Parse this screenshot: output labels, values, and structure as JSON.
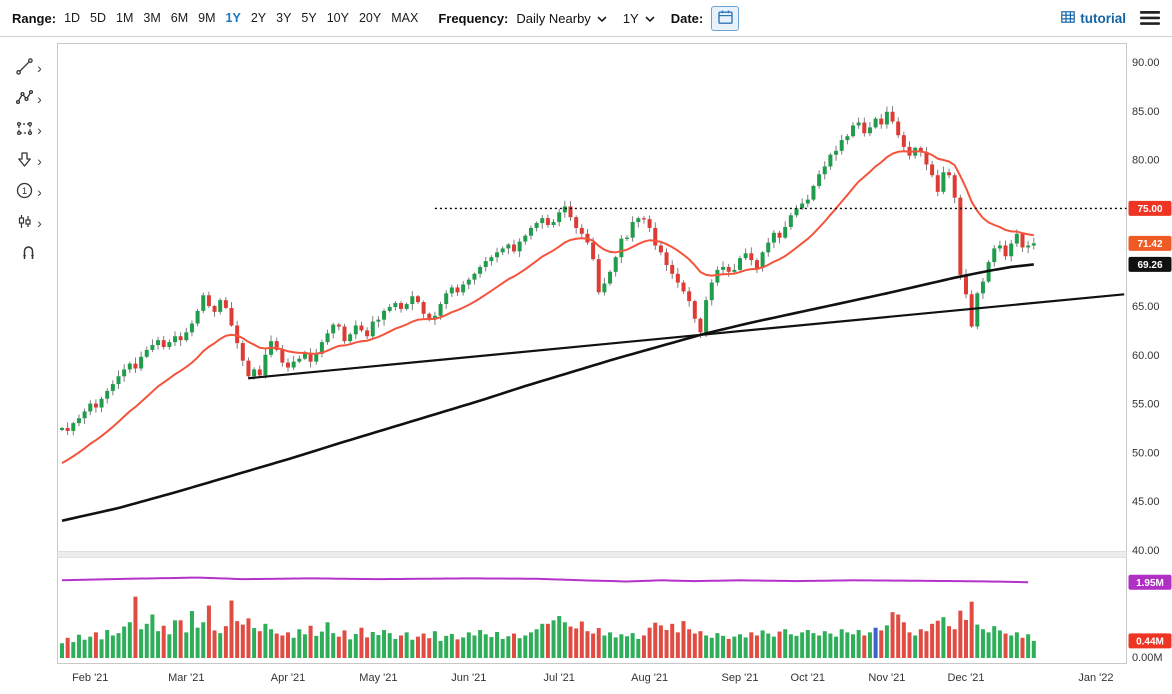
{
  "toolbar": {
    "range_label": "Range:",
    "range_options": [
      "1D",
      "5D",
      "1M",
      "3M",
      "6M",
      "9M",
      "1Y",
      "2Y",
      "3Y",
      "5Y",
      "10Y",
      "20Y",
      "MAX"
    ],
    "range_selected": "1Y",
    "frequency_label": "Frequency:",
    "frequency_value": "Daily Nearby",
    "period_value": "1Y",
    "date_label": "Date:",
    "brand": "tutorial"
  },
  "sidebar": {
    "tools": [
      "trendline-tool",
      "polyline-tool",
      "shape-tool",
      "arrow-tool",
      "count-tool",
      "pattern-tool",
      "magnet-tool"
    ]
  },
  "colors": {
    "up": "#1f9d4d",
    "down": "#dd3b34",
    "volume_up": "#2fae5a",
    "volume_down": "#e04b42",
    "volume_highlight": "#3a62c9",
    "red_ma": "#f4543c",
    "black_ma": "#111111",
    "oi_line": "#b434cb",
    "wick": "#6f6f6f"
  },
  "badges": {
    "price": [
      {
        "label": "75.00",
        "value": 75.0,
        "color": "#ee3524"
      },
      {
        "label": "71.42",
        "value": 71.42,
        "color": "#ef5b25"
      },
      {
        "label": "69.26",
        "value": 69.26,
        "color": "#101010"
      }
    ],
    "volume": [
      {
        "label": "1.95M",
        "value_m": 1.95,
        "color": "#b02fc5"
      },
      {
        "label": "0.44M",
        "value_m": 0.44,
        "color": "#ee3524"
      }
    ]
  },
  "chart_data": {
    "type": "candlestick",
    "price_axis": {
      "min": 40,
      "max": 91.5,
      "ticks": [
        90,
        85,
        80,
        65,
        60,
        55,
        50,
        45,
        40
      ]
    },
    "volume_axis": {
      "max_m": 2.6,
      "tick_label": "0.00M"
    },
    "x_axis": {
      "total_slots": 188,
      "months": [
        {
          "label": "Feb '21",
          "i": 5
        },
        {
          "label": "Mar '21",
          "i": 22
        },
        {
          "label": "Apr '21",
          "i": 40
        },
        {
          "label": "May '21",
          "i": 56
        },
        {
          "label": "Jun '21",
          "i": 72
        },
        {
          "label": "Jul '21",
          "i": 88
        },
        {
          "label": "Aug '21",
          "i": 104
        },
        {
          "label": "Sep '21",
          "i": 120
        },
        {
          "label": "Oct '21",
          "i": 132
        },
        {
          "label": "Nov '21",
          "i": 146
        },
        {
          "label": "Dec '21",
          "i": 160
        },
        {
          "label": "Jan '22",
          "i": 183
        }
      ]
    },
    "series": {
      "first_open": 52.3,
      "closes": [
        52.5,
        52.2,
        53.0,
        53.5,
        54.2,
        55.0,
        54.6,
        55.5,
        56.3,
        57.0,
        57.8,
        58.5,
        59.1,
        58.6,
        59.8,
        60.5,
        61.0,
        61.5,
        60.8,
        61.3,
        61.9,
        61.5,
        62.3,
        63.2,
        64.5,
        66.1,
        65.0,
        64.4,
        65.6,
        64.8,
        63.0,
        61.2,
        59.4,
        57.8,
        58.5,
        57.9,
        60.0,
        61.4,
        60.5,
        59.2,
        58.7,
        59.3,
        59.6,
        60.2,
        59.3,
        60.1,
        61.3,
        62.2,
        63.1,
        62.9,
        61.4,
        62.1,
        63.0,
        62.5,
        61.9,
        63.4,
        63.6,
        64.5,
        64.9,
        65.3,
        64.7,
        65.2,
        66.0,
        65.4,
        64.2,
        63.6,
        64.0,
        65.2,
        66.3,
        66.9,
        66.4,
        67.2,
        67.7,
        68.3,
        69.0,
        69.6,
        70.0,
        70.5,
        70.9,
        71.3,
        70.6,
        71.6,
        72.2,
        73.0,
        73.5,
        74.0,
        73.3,
        73.6,
        74.6,
        75.2,
        74.1,
        73.0,
        72.4,
        71.5,
        69.8,
        66.4,
        67.3,
        68.5,
        70.0,
        71.9,
        72.0,
        73.6,
        74.0,
        73.9,
        73.0,
        71.2,
        70.5,
        69.2,
        68.3,
        67.4,
        66.5,
        65.5,
        63.7,
        62.3,
        65.6,
        67.4,
        68.7,
        69.0,
        68.5,
        68.7,
        69.9,
        70.4,
        69.7,
        68.9,
        70.5,
        71.5,
        72.5,
        72.0,
        73.1,
        74.3,
        75.0,
        75.5,
        75.9,
        77.3,
        78.5,
        79.3,
        80.5,
        80.9,
        82.0,
        82.4,
        83.5,
        83.8,
        82.7,
        83.3,
        84.2,
        83.6,
        84.9,
        83.9,
        82.5,
        81.3,
        80.4,
        81.2,
        80.8,
        79.5,
        78.4,
        76.7,
        78.7,
        78.4,
        76.1,
        68.2,
        66.2,
        62.9,
        66.3,
        67.5,
        69.5,
        70.9,
        71.2,
        70.1,
        71.4,
        72.4,
        71.0,
        71.2,
        71.42
      ],
      "volumes_m": [
        0.38,
        0.52,
        0.41,
        0.6,
        0.47,
        0.55,
        0.66,
        0.48,
        0.72,
        0.58,
        0.64,
        0.81,
        0.92,
        1.58,
        0.74,
        0.88,
        1.12,
        0.69,
        0.83,
        0.61,
        0.97,
        0.97,
        0.66,
        1.21,
        0.78,
        0.92,
        1.35,
        0.71,
        0.64,
        0.82,
        1.48,
        0.95,
        0.86,
        1.02,
        0.77,
        0.69,
        0.88,
        0.74,
        0.63,
        0.58,
        0.66,
        0.52,
        0.74,
        0.61,
        0.83,
        0.57,
        0.68,
        0.92,
        0.64,
        0.55,
        0.71,
        0.48,
        0.62,
        0.78,
        0.53,
        0.67,
        0.59,
        0.72,
        0.64,
        0.49,
        0.58,
        0.66,
        0.47,
        0.55,
        0.63,
        0.51,
        0.69,
        0.44,
        0.57,
        0.62,
        0.48,
        0.53,
        0.66,
        0.58,
        0.72,
        0.61,
        0.54,
        0.67,
        0.49,
        0.56,
        0.63,
        0.51,
        0.58,
        0.66,
        0.74,
        0.88,
        0.88,
        0.97,
        1.08,
        0.92,
        0.81,
        0.76,
        0.94,
        0.69,
        0.63,
        0.77,
        0.58,
        0.66,
        0.53,
        0.61,
        0.56,
        0.64,
        0.49,
        0.58,
        0.78,
        0.91,
        0.84,
        0.72,
        0.88,
        0.66,
        0.95,
        0.74,
        0.63,
        0.69,
        0.58,
        0.52,
        0.64,
        0.57,
        0.49,
        0.55,
        0.61,
        0.53,
        0.66,
        0.58,
        0.71,
        0.63,
        0.55,
        0.68,
        0.74,
        0.61,
        0.57,
        0.66,
        0.72,
        0.64,
        0.58,
        0.69,
        0.63,
        0.55,
        0.74,
        0.66,
        0.61,
        0.72,
        0.58,
        0.66,
        0.78,
        0.71,
        0.84,
        1.18,
        1.12,
        0.92,
        0.66,
        0.58,
        0.74,
        0.69,
        0.88,
        0.96,
        1.05,
        0.82,
        0.74,
        1.22,
        0.98,
        1.45,
        0.86,
        0.74,
        0.66,
        0.82,
        0.71,
        0.63,
        0.58,
        0.66,
        0.52,
        0.61,
        0.44
      ],
      "volume_highlight_index": 144
    },
    "overlays": {
      "resistance_line": {
        "value": 75.0,
        "start_index": 66,
        "style": "dotted"
      },
      "trendline": {
        "from": {
          "index": 33,
          "price": 57.6
        },
        "to": {
          "index": 188,
          "price": 66.2
        }
      },
      "red_ma": {
        "kind": "ema",
        "alpha": 0.1,
        "seed": 48.5
      },
      "black_ma_points": [
        [
          0,
          43.0
        ],
        [
          10,
          44.3
        ],
        [
          20,
          45.9
        ],
        [
          30,
          47.6
        ],
        [
          40,
          49.3
        ],
        [
          50,
          51.1
        ],
        [
          58,
          52.5
        ],
        [
          66,
          53.9
        ],
        [
          74,
          55.3
        ],
        [
          82,
          56.8
        ],
        [
          90,
          58.2
        ],
        [
          98,
          59.6
        ],
        [
          106,
          60.9
        ],
        [
          114,
          62.2
        ],
        [
          122,
          63.3
        ],
        [
          130,
          64.3
        ],
        [
          138,
          65.3
        ],
        [
          146,
          66.3
        ],
        [
          152,
          67.1
        ],
        [
          158,
          67.9
        ],
        [
          164,
          68.6
        ],
        [
          168,
          69.0
        ],
        [
          172,
          69.26
        ]
      ],
      "open_interest_m": [
        [
          0,
          2.0
        ],
        [
          12,
          2.04
        ],
        [
          24,
          2.07
        ],
        [
          32,
          2.03
        ],
        [
          44,
          2.05
        ],
        [
          56,
          2.03
        ],
        [
          72,
          2.05
        ],
        [
          84,
          2.04
        ],
        [
          92,
          2.0
        ],
        [
          100,
          1.97
        ],
        [
          106,
          2.0
        ],
        [
          112,
          1.98
        ],
        [
          120,
          2.0
        ],
        [
          130,
          1.98
        ],
        [
          140,
          2.0
        ],
        [
          150,
          1.99
        ],
        [
          158,
          1.98
        ],
        [
          164,
          1.97
        ],
        [
          168,
          1.96
        ],
        [
          171,
          1.95
        ]
      ]
    }
  }
}
